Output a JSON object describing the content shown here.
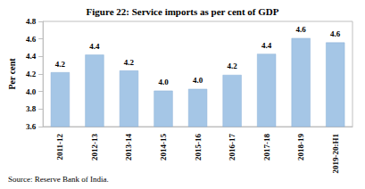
{
  "chart_data": {
    "type": "bar",
    "title": "Figure 22: Service imports as per cent of GDP",
    "source": "Source: Reserve Bank of India.",
    "ylabel": "Per cent",
    "categories": [
      "2011-12",
      "2012-13",
      "2013-14",
      "2014-15",
      "2015-16",
      "2016-17",
      "2017-18",
      "2018-19",
      "2019-20:H1"
    ],
    "values": [
      4.22,
      4.42,
      4.24,
      4.01,
      4.03,
      4.19,
      4.43,
      4.61,
      4.56
    ],
    "value_labels": [
      "4.2",
      "4.4",
      "4.2",
      "4.0",
      "4.0",
      "4.2",
      "4.4",
      "4.6",
      "4.6"
    ],
    "color": "#a5c6e6",
    "ylim": [
      3.6,
      4.8
    ],
    "yticks": [
      3.6,
      3.8,
      {
        "value": 4,
        "label": "4.0"
      },
      4.2,
      4.4,
      4.6,
      4.8
    ],
    "grid": false,
    "data_labels": true
  }
}
